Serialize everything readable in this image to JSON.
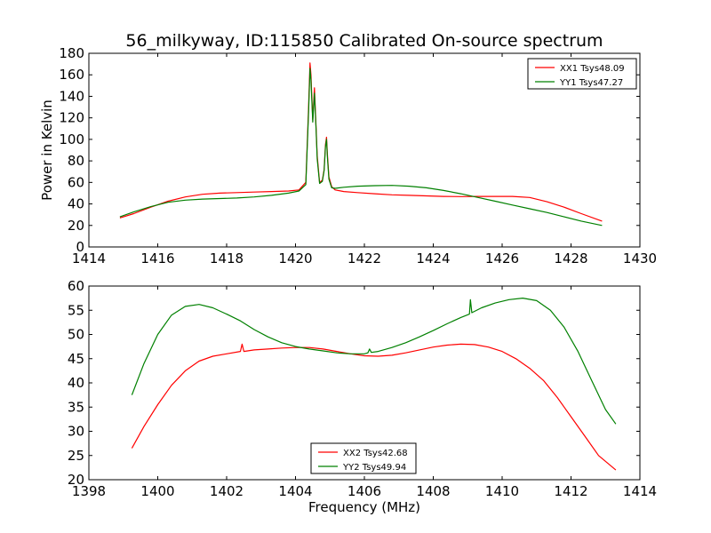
{
  "chart_data": [
    {
      "type": "line",
      "title": "56_milkyway, ID:115850 Calibrated On-source spectrum",
      "xlabel": "",
      "ylabel": "Power in Kelvin",
      "xlim": [
        1414,
        1430
      ],
      "ylim": [
        0,
        180
      ],
      "xticks": [
        1414,
        1416,
        1418,
        1420,
        1422,
        1424,
        1426,
        1428,
        1430
      ],
      "yticks": [
        0,
        20,
        40,
        60,
        80,
        100,
        120,
        140,
        160,
        180
      ],
      "grid": false,
      "legend_position": "top-right",
      "series": [
        {
          "name": "XX1 Tsys48.09",
          "color": "#ff0000",
          "x": [
            1414.9,
            1415.3,
            1415.8,
            1416.3,
            1416.8,
            1417.3,
            1417.8,
            1418.3,
            1418.8,
            1419.3,
            1419.8,
            1420.1,
            1420.3,
            1420.38,
            1420.42,
            1420.45,
            1420.5,
            1420.55,
            1420.6,
            1420.63,
            1420.7,
            1420.78,
            1420.83,
            1420.87,
            1420.9,
            1420.93,
            1420.97,
            1421.05,
            1421.15,
            1421.4,
            1421.8,
            1422.3,
            1422.8,
            1423.3,
            1423.8,
            1424.3,
            1424.8,
            1425.3,
            1425.8,
            1426.3,
            1426.8,
            1427.3,
            1427.8,
            1428.3,
            1428.9
          ],
          "y": [
            27,
            31,
            37,
            42.5,
            46.5,
            49,
            50,
            50.5,
            51,
            51.5,
            52,
            53,
            60,
            130,
            171,
            160,
            118,
            148,
            110,
            85,
            60,
            62,
            72,
            95,
            102,
            85,
            65,
            56,
            53,
            51.5,
            50.5,
            49.5,
            48.5,
            48,
            47.5,
            47,
            46.8,
            47,
            47,
            47,
            46,
            42,
            37,
            31,
            24
          ]
        },
        {
          "name": "YY1 Tsys47.27",
          "color": "#008000",
          "x": [
            1414.9,
            1415.3,
            1415.8,
            1416.3,
            1416.8,
            1417.3,
            1417.8,
            1418.3,
            1418.8,
            1419.3,
            1419.8,
            1420.1,
            1420.3,
            1420.38,
            1420.42,
            1420.45,
            1420.5,
            1420.55,
            1420.6,
            1420.63,
            1420.7,
            1420.78,
            1420.83,
            1420.87,
            1420.9,
            1420.93,
            1420.97,
            1421.05,
            1421.15,
            1421.4,
            1421.8,
            1422.3,
            1422.8,
            1423.3,
            1423.8,
            1424.3,
            1424.8,
            1425.3,
            1425.8,
            1426.3,
            1426.8,
            1427.3,
            1427.8,
            1428.3,
            1428.9
          ],
          "y": [
            28,
            32.5,
            37.5,
            41.5,
            43.5,
            44.5,
            45,
            45.5,
            46.5,
            48,
            50,
            52,
            58,
            125,
            166,
            155,
            116,
            143,
            108,
            82,
            59,
            61,
            71,
            93,
            100,
            82,
            63,
            55,
            54.5,
            55.5,
            56.5,
            57,
            57.2,
            56.5,
            55,
            52.5,
            49.5,
            46,
            42.5,
            39,
            35.5,
            32,
            28,
            24,
            20
          ]
        }
      ]
    },
    {
      "type": "line",
      "title": "",
      "xlabel": "Frequency (MHz)",
      "ylabel": "",
      "xlim": [
        1398,
        1414
      ],
      "ylim": [
        20,
        60
      ],
      "xticks": [
        1398,
        1400,
        1402,
        1404,
        1406,
        1408,
        1410,
        1412,
        1414
      ],
      "yticks": [
        20,
        25,
        30,
        35,
        40,
        45,
        50,
        55,
        60
      ],
      "grid": false,
      "legend_position": "bottom-center",
      "series": [
        {
          "name": "XX2 Tsys42.68",
          "color": "#ff0000",
          "x": [
            1399.25,
            1399.6,
            1400.0,
            1400.4,
            1400.8,
            1401.2,
            1401.6,
            1402.0,
            1402.4,
            1402.45,
            1402.5,
            1402.8,
            1403.2,
            1403.6,
            1404.0,
            1404.4,
            1404.8,
            1405.2,
            1405.6,
            1406.0,
            1406.4,
            1406.8,
            1407.2,
            1407.6,
            1408.0,
            1408.4,
            1408.8,
            1409.2,
            1409.6,
            1410.0,
            1410.4,
            1410.8,
            1411.2,
            1411.6,
            1412.0,
            1412.4,
            1412.8,
            1413.3
          ],
          "y": [
            26.5,
            31,
            35.5,
            39.5,
            42.5,
            44.5,
            45.5,
            46,
            46.5,
            48,
            46.5,
            46.8,
            47,
            47.2,
            47.3,
            47.3,
            47,
            46.5,
            46,
            45.6,
            45.5,
            45.7,
            46.2,
            46.8,
            47.4,
            47.8,
            48,
            47.9,
            47.4,
            46.5,
            45,
            43,
            40.5,
            37,
            33,
            29,
            25,
            22
          ]
        },
        {
          "name": "YY2 Tsys49.94",
          "color": "#008000",
          "x": [
            1399.25,
            1399.6,
            1400.0,
            1400.4,
            1400.8,
            1401.2,
            1401.6,
            1402.0,
            1402.4,
            1402.8,
            1403.2,
            1403.6,
            1404.0,
            1404.4,
            1404.8,
            1405.2,
            1405.6,
            1406.0,
            1406.1,
            1406.15,
            1406.2,
            1406.4,
            1406.8,
            1407.2,
            1407.6,
            1408.0,
            1408.4,
            1408.8,
            1409.05,
            1409.08,
            1409.12,
            1409.4,
            1409.8,
            1410.2,
            1410.6,
            1411.0,
            1411.4,
            1411.8,
            1412.2,
            1412.6,
            1413.0,
            1413.3
          ],
          "y": [
            37.5,
            44,
            50,
            54,
            55.8,
            56.2,
            55.5,
            54.2,
            52.8,
            51,
            49.5,
            48.3,
            47.5,
            47,
            46.6,
            46.2,
            46,
            46,
            46.2,
            47,
            46.3,
            46.5,
            47.3,
            48.3,
            49.5,
            50.8,
            52.2,
            53.5,
            54.2,
            57.2,
            54.5,
            55.5,
            56.5,
            57.2,
            57.5,
            57,
            55,
            51.5,
            46.5,
            40.5,
            34.5,
            31.5
          ]
        }
      ]
    }
  ]
}
